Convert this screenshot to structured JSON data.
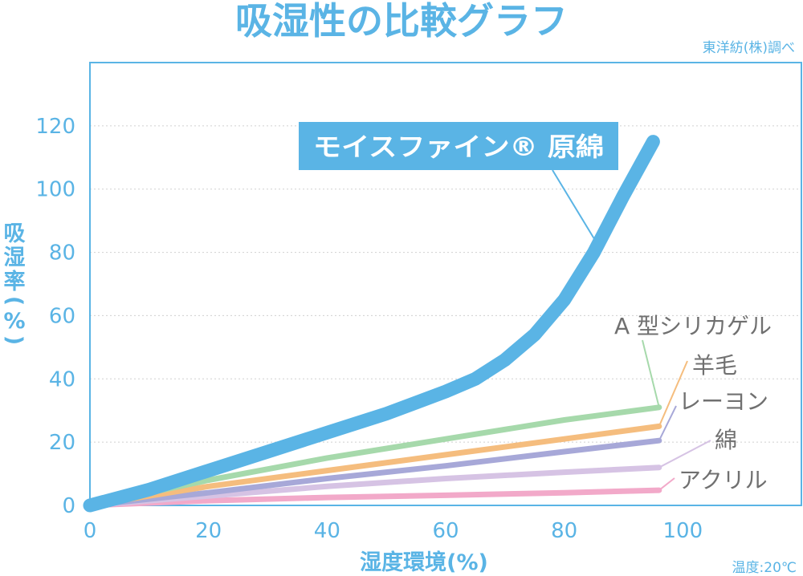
{
  "chart_data": {
    "type": "line",
    "title": "吸湿性の比較グラフ",
    "source": "東洋紡(株)調べ",
    "condition": "温度:20℃",
    "xlabel": "湿度環境(%)",
    "ylabel_chars": [
      "吸",
      "湿",
      "率",
      "(",
      "%",
      ")"
    ],
    "xlim": [
      0,
      120
    ],
    "ylim": [
      0,
      140
    ],
    "xticks": [
      0,
      20,
      40,
      60,
      80,
      100
    ],
    "yticks": [
      0,
      20,
      40,
      60,
      80,
      100,
      120
    ],
    "grid": true,
    "series": [
      {
        "name": "モイスファイン® 原綿",
        "color": "#5ab4e5",
        "x": [
          0,
          10,
          20,
          30,
          40,
          50,
          60,
          65,
          70,
          75,
          80,
          85,
          90,
          95
        ],
        "y": [
          0,
          5,
          11,
          17,
          23,
          29,
          36,
          40,
          46,
          54,
          65,
          80,
          98,
          115
        ]
      },
      {
        "name": "A 型シリカゲル",
        "color": "#a6d9ab",
        "x": [
          0,
          20,
          40,
          60,
          80,
          96
        ],
        "y": [
          0,
          8,
          15,
          21,
          27,
          31
        ]
      },
      {
        "name": "羊毛",
        "color": "#f5bd7e",
        "x": [
          0,
          20,
          40,
          60,
          80,
          96
        ],
        "y": [
          0,
          6,
          11,
          16,
          21,
          25
        ]
      },
      {
        "name": "レーヨン",
        "color": "#a7a8d8",
        "x": [
          0,
          20,
          40,
          60,
          80,
          96
        ],
        "y": [
          0,
          4,
          8.5,
          12.5,
          17,
          20.5
        ]
      },
      {
        "name": "綿",
        "color": "#d6c3e4",
        "x": [
          0,
          20,
          40,
          60,
          80,
          96
        ],
        "y": [
          0,
          3,
          6,
          8.5,
          10.5,
          12
        ]
      },
      {
        "name": "アクリル",
        "color": "#f2a9c9",
        "x": [
          0,
          20,
          40,
          60,
          80,
          96
        ],
        "y": [
          0,
          1.5,
          2.5,
          3.2,
          4,
          4.8
        ]
      }
    ],
    "colors": {
      "accent": "#5ab4e5",
      "text_gray": "#707070",
      "grid": "#d0d0d0"
    }
  }
}
